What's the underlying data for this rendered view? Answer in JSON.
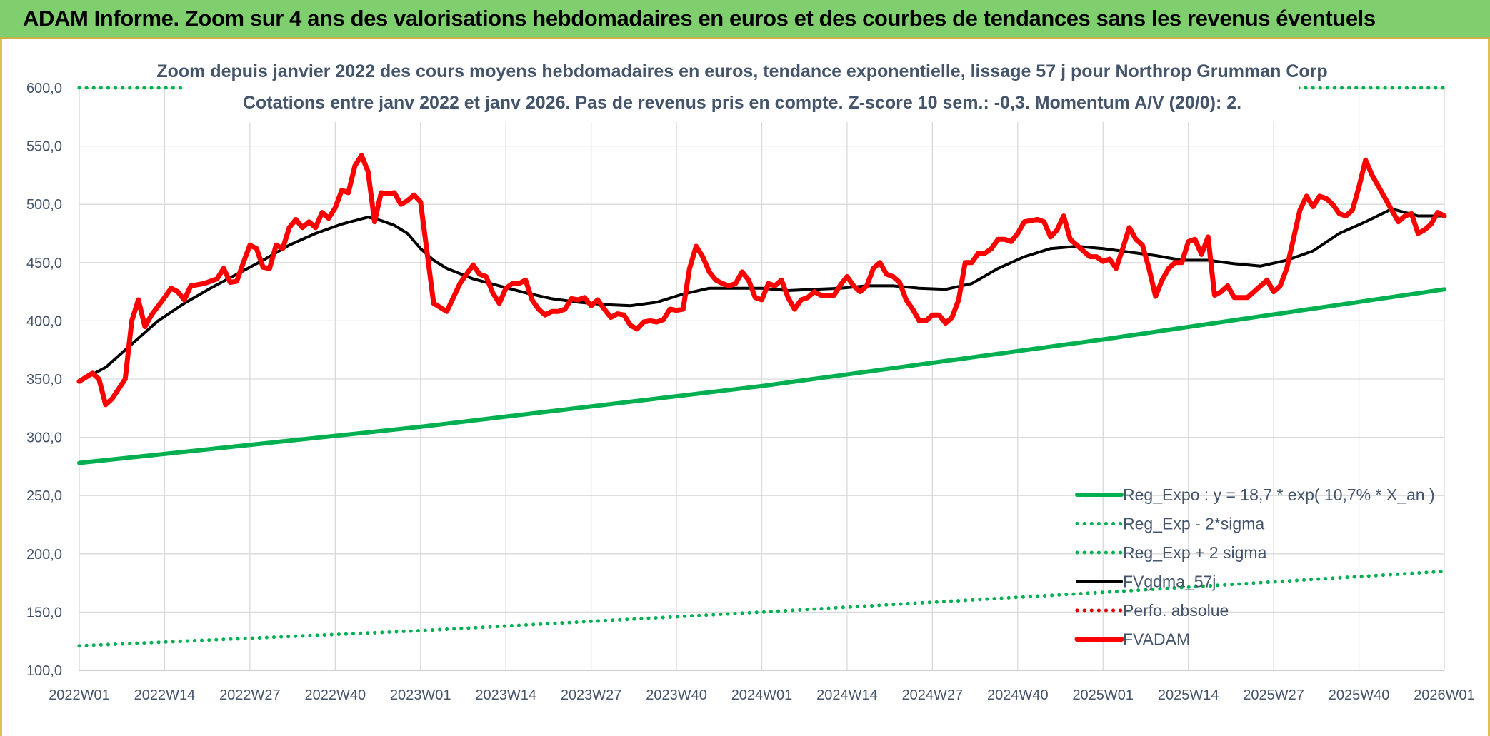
{
  "banner": {
    "title": "ADAM Informe. Zoom sur 4 ans des valorisations hebdomadaires en euros et des courbes de tendances sans les revenus éventuels"
  },
  "colors": {
    "banner_bg": "#7fcf6f",
    "reg_expo": "#00b050",
    "fvgdma": "#000000",
    "perfo": "#e00000",
    "fvadam": "#ff0000",
    "text": "#44546a",
    "grid": "#d9d9d9"
  },
  "chart_data": {
    "type": "line",
    "title": "Zoom depuis janvier 2022 des cours moyens hebdomadaires en euros, tendance exponentielle, lissage 57 j pour Northrop Grumman Corp",
    "subtitle": "Cotations entre janv 2022 et janv 2026. Pas de revenus pris en compte. Z-score 10 sem.: -0,3. Momentum A/V (20/0): 2.",
    "xlabel": "",
    "ylabel": "",
    "ylim": [
      100,
      600
    ],
    "yticks": [
      "100,0",
      "150,0",
      "200,0",
      "250,0",
      "300,0",
      "350,0",
      "400,0",
      "450,0",
      "500,0",
      "550,0",
      "600,0"
    ],
    "xticks": [
      "2022W01",
      "2022W14",
      "2022W27",
      "2022W40",
      "2023W01",
      "2023W14",
      "2023W27",
      "2023W40",
      "2024W01",
      "2024W14",
      "2024W27",
      "2024W40",
      "2025W01",
      "2025W14",
      "2025W27",
      "2025W40",
      "2026W01"
    ],
    "x_range_weeks": [
      0,
      208
    ],
    "grid": true,
    "legend_position": "bottom-right",
    "series": [
      {
        "name": "Reg_Expo : y = 18,7 * exp( 10,7% *  X_an )",
        "style": "solid-thick",
        "color": "#00b050",
        "points": [
          [
            0,
            278
          ],
          [
            52,
            309
          ],
          [
            104,
            344
          ],
          [
            156,
            384
          ],
          [
            208,
            427
          ]
        ]
      },
      {
        "name": "Reg_Exp - 2*sigma",
        "style": "dotted",
        "color": "#00b050",
        "points": [
          [
            0,
            121
          ],
          [
            52,
            134
          ],
          [
            104,
            150
          ],
          [
            156,
            167
          ],
          [
            208,
            185
          ]
        ]
      },
      {
        "name": "Reg_Exp + 2 sigma",
        "style": "dotted",
        "color": "#00b050",
        "points": [
          [
            0,
            600
          ],
          [
            208,
            600
          ]
        ]
      },
      {
        "name": "FVgdma_57j",
        "style": "solid",
        "color": "#000000",
        "points": [
          [
            0,
            348
          ],
          [
            4,
            360
          ],
          [
            8,
            380
          ],
          [
            12,
            400
          ],
          [
            16,
            415
          ],
          [
            20,
            428
          ],
          [
            24,
            440
          ],
          [
            28,
            452
          ],
          [
            32,
            465
          ],
          [
            36,
            475
          ],
          [
            40,
            483
          ],
          [
            44,
            489
          ],
          [
            46,
            486
          ],
          [
            48,
            482
          ],
          [
            50,
            475
          ],
          [
            52,
            462
          ],
          [
            54,
            452
          ],
          [
            56,
            445
          ],
          [
            60,
            436
          ],
          [
            64,
            430
          ],
          [
            68,
            424
          ],
          [
            72,
            419
          ],
          [
            76,
            416
          ],
          [
            80,
            414
          ],
          [
            84,
            413
          ],
          [
            88,
            416
          ],
          [
            92,
            423
          ],
          [
            96,
            428
          ],
          [
            100,
            428
          ],
          [
            104,
            428
          ],
          [
            108,
            426
          ],
          [
            112,
            427
          ],
          [
            116,
            428
          ],
          [
            120,
            430
          ],
          [
            124,
            430
          ],
          [
            128,
            428
          ],
          [
            132,
            427
          ],
          [
            136,
            432
          ],
          [
            140,
            445
          ],
          [
            144,
            455
          ],
          [
            148,
            462
          ],
          [
            152,
            464
          ],
          [
            156,
            462
          ],
          [
            160,
            459
          ],
          [
            164,
            456
          ],
          [
            168,
            452
          ],
          [
            172,
            452
          ],
          [
            176,
            449
          ],
          [
            180,
            447
          ],
          [
            184,
            452
          ],
          [
            188,
            460
          ],
          [
            192,
            475
          ],
          [
            196,
            485
          ],
          [
            200,
            496
          ],
          [
            204,
            490
          ],
          [
            208,
            490
          ]
        ]
      },
      {
        "name": "Perfo. absolue",
        "style": "dotted",
        "color": "#e00000",
        "points": []
      },
      {
        "name": "FVADAM",
        "style": "solid-thick",
        "color": "#ff0000",
        "points": [
          [
            0,
            348
          ],
          [
            2,
            355
          ],
          [
            3,
            350
          ],
          [
            4,
            328
          ],
          [
            5,
            333
          ],
          [
            7,
            350
          ],
          [
            8,
            400
          ],
          [
            9,
            418
          ],
          [
            10,
            395
          ],
          [
            11,
            405
          ],
          [
            13,
            420
          ],
          [
            14,
            428
          ],
          [
            15,
            425
          ],
          [
            16,
            418
          ],
          [
            17,
            430
          ],
          [
            19,
            432
          ],
          [
            21,
            436
          ],
          [
            22,
            445
          ],
          [
            23,
            433
          ],
          [
            24,
            434
          ],
          [
            25,
            450
          ],
          [
            26,
            465
          ],
          [
            27,
            462
          ],
          [
            28,
            446
          ],
          [
            29,
            445
          ],
          [
            30,
            465
          ],
          [
            31,
            462
          ],
          [
            32,
            480
          ],
          [
            33,
            487
          ],
          [
            34,
            480
          ],
          [
            35,
            485
          ],
          [
            36,
            480
          ],
          [
            37,
            493
          ],
          [
            38,
            488
          ],
          [
            39,
            497
          ],
          [
            40,
            512
          ],
          [
            41,
            510
          ],
          [
            42,
            533
          ],
          [
            43,
            542
          ],
          [
            44,
            528
          ],
          [
            45,
            485
          ],
          [
            46,
            510
          ],
          [
            47,
            509
          ],
          [
            48,
            510
          ],
          [
            49,
            500
          ],
          [
            50,
            503
          ],
          [
            51,
            508
          ],
          [
            52,
            502
          ],
          [
            54,
            415
          ],
          [
            56,
            408
          ],
          [
            58,
            432
          ],
          [
            60,
            448
          ],
          [
            61,
            440
          ],
          [
            62,
            438
          ],
          [
            63,
            424
          ],
          [
            64,
            415
          ],
          [
            65,
            428
          ],
          [
            66,
            432
          ],
          [
            67,
            432
          ],
          [
            68,
            435
          ],
          [
            69,
            418
          ],
          [
            70,
            410
          ],
          [
            71,
            405
          ],
          [
            72,
            408
          ],
          [
            73,
            408
          ],
          [
            74,
            410
          ],
          [
            75,
            419
          ],
          [
            76,
            418
          ],
          [
            77,
            420
          ],
          [
            78,
            413
          ],
          [
            79,
            418
          ],
          [
            80,
            410
          ],
          [
            81,
            403
          ],
          [
            82,
            406
          ],
          [
            83,
            405
          ],
          [
            84,
            396
          ],
          [
            85,
            393
          ],
          [
            86,
            399
          ],
          [
            87,
            400
          ],
          [
            88,
            399
          ],
          [
            89,
            401
          ],
          [
            90,
            410
          ],
          [
            91,
            409
          ],
          [
            92,
            410
          ],
          [
            93,
            445
          ],
          [
            94,
            464
          ],
          [
            95,
            455
          ],
          [
            96,
            442
          ],
          [
            97,
            435
          ],
          [
            98,
            432
          ],
          [
            99,
            430
          ],
          [
            100,
            432
          ],
          [
            101,
            442
          ],
          [
            102,
            435
          ],
          [
            103,
            420
          ],
          [
            104,
            418
          ],
          [
            105,
            432
          ],
          [
            106,
            430
          ],
          [
            107,
            435
          ],
          [
            108,
            420
          ],
          [
            109,
            410
          ],
          [
            110,
            418
          ],
          [
            111,
            420
          ],
          [
            112,
            425
          ],
          [
            113,
            422
          ],
          [
            114,
            422
          ],
          [
            115,
            422
          ],
          [
            116,
            431
          ],
          [
            117,
            438
          ],
          [
            118,
            430
          ],
          [
            119,
            425
          ],
          [
            120,
            430
          ],
          [
            121,
            445
          ],
          [
            122,
            450
          ],
          [
            123,
            440
          ],
          [
            124,
            438
          ],
          [
            125,
            433
          ],
          [
            126,
            418
          ],
          [
            127,
            410
          ],
          [
            128,
            400
          ],
          [
            129,
            400
          ],
          [
            130,
            405
          ],
          [
            131,
            405
          ],
          [
            132,
            398
          ],
          [
            133,
            403
          ],
          [
            134,
            418
          ],
          [
            135,
            450
          ],
          [
            136,
            450
          ],
          [
            137,
            458
          ],
          [
            138,
            458
          ],
          [
            139,
            462
          ],
          [
            140,
            470
          ],
          [
            141,
            470
          ],
          [
            142,
            468
          ],
          [
            143,
            475
          ],
          [
            144,
            485
          ],
          [
            146,
            487
          ],
          [
            147,
            485
          ],
          [
            148,
            472
          ],
          [
            149,
            478
          ],
          [
            150,
            490
          ],
          [
            151,
            470
          ],
          [
            152,
            465
          ],
          [
            153,
            460
          ],
          [
            154,
            455
          ],
          [
            155,
            455
          ],
          [
            156,
            451
          ],
          [
            157,
            453
          ],
          [
            158,
            445
          ],
          [
            159,
            462
          ],
          [
            160,
            480
          ],
          [
            161,
            470
          ],
          [
            162,
            465
          ],
          [
            163,
            445
          ],
          [
            164,
            421
          ],
          [
            165,
            435
          ],
          [
            166,
            445
          ],
          [
            167,
            450
          ],
          [
            168,
            450
          ],
          [
            169,
            468
          ],
          [
            170,
            470
          ],
          [
            171,
            457
          ],
          [
            172,
            472
          ],
          [
            173,
            422
          ],
          [
            174,
            425
          ],
          [
            175,
            430
          ],
          [
            176,
            420
          ],
          [
            178,
            420
          ],
          [
            179,
            425
          ],
          [
            180,
            430
          ],
          [
            181,
            435
          ],
          [
            182,
            425
          ],
          [
            183,
            430
          ],
          [
            184,
            445
          ],
          [
            185,
            470
          ],
          [
            186,
            495
          ],
          [
            187,
            507
          ],
          [
            188,
            498
          ],
          [
            189,
            507
          ],
          [
            190,
            505
          ],
          [
            191,
            500
          ],
          [
            192,
            492
          ],
          [
            193,
            490
          ],
          [
            194,
            495
          ],
          [
            195,
            515
          ],
          [
            196,
            538
          ],
          [
            197,
            525
          ],
          [
            198,
            515
          ],
          [
            199,
            505
          ],
          [
            200,
            495
          ],
          [
            201,
            485
          ],
          [
            202,
            490
          ],
          [
            203,
            492
          ],
          [
            204,
            475
          ],
          [
            205,
            478
          ],
          [
            206,
            483
          ],
          [
            207,
            493
          ],
          [
            208,
            490
          ]
        ]
      }
    ]
  }
}
